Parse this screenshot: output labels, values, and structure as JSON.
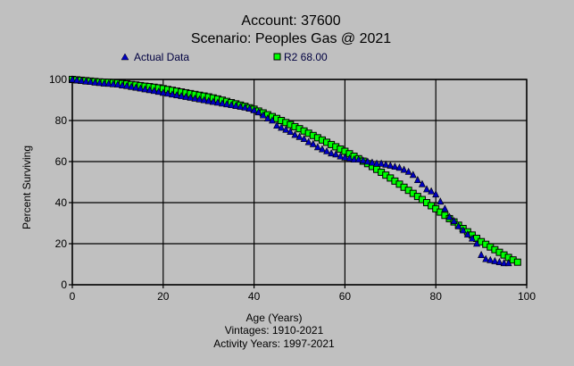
{
  "chart_data": {
    "type": "scatter",
    "title": "Account: 37600",
    "subtitle": "Scenario: Peoples Gas @ 2021",
    "xlabel": "Age (Years)",
    "ylabel": "Percent Surviving",
    "footnotes": [
      "Vintages: 1910-2021",
      "Activity Years: 1997-2021"
    ],
    "xlim": [
      0,
      100
    ],
    "ylim": [
      0,
      100
    ],
    "xticks": [
      "0",
      "20",
      "40",
      "60",
      "80",
      "100"
    ],
    "yticks": [
      "0",
      "20",
      "40",
      "60",
      "80",
      "100"
    ],
    "grid": true,
    "legend_placement": "top",
    "colors": {
      "background": "#c0c0c0",
      "actual": "#0000c0",
      "fit": "#00ff00"
    },
    "series": [
      {
        "name": "Actual Data",
        "marker": "triangle",
        "x_start": 0,
        "x_step": 1,
        "values": [
          100,
          99.6,
          99.3,
          99.0,
          98.8,
          98.5,
          98.3,
          98.0,
          97.9,
          97.7,
          97.5,
          97.1,
          96.8,
          96.4,
          96.0,
          95.6,
          95.2,
          94.8,
          94.4,
          94.0,
          93.5,
          93.1,
          92.7,
          92.3,
          91.9,
          91.5,
          91.1,
          90.7,
          90.3,
          89.9,
          89.5,
          89.1,
          88.7,
          88.3,
          87.9,
          87.5,
          87.1,
          86.7,
          86.3,
          85.8,
          85.0,
          84.0,
          82.5,
          81.0,
          80.0,
          77.5,
          76.5,
          75.5,
          74.5,
          73.0,
          72.0,
          71.0,
          69.5,
          68.5,
          67.0,
          66.0,
          65.0,
          64.0,
          63.5,
          62.5,
          62.0,
          61.5,
          61.0,
          61.0,
          60.5,
          60.0,
          59.5,
          59.0,
          59.0,
          58.5,
          58.0,
          57.5,
          57.0,
          56.0,
          55.0,
          53.5,
          51.0,
          49.0,
          46.5,
          45.5,
          44.0,
          40.5,
          37.0,
          33.0,
          31.0,
          28.5,
          26.5,
          24.5,
          22.5,
          20.0,
          14.5,
          12.5,
          12.0,
          11.5,
          11.0,
          10.5,
          10.5
        ]
      },
      {
        "name": "R2 68.00",
        "marker": "square",
        "x_start": 0,
        "x_step": 1,
        "values": [
          100,
          99.8,
          99.6,
          99.4,
          99.2,
          99.0,
          98.8,
          98.7,
          98.6,
          98.4,
          98.3,
          98.0,
          97.8,
          97.5,
          97.3,
          97.0,
          96.7,
          96.5,
          96.2,
          95.9,
          95.5,
          95.1,
          94.7,
          94.3,
          93.9,
          93.5,
          93.1,
          92.7,
          92.3,
          91.9,
          91.5,
          91.0,
          90.5,
          89.9,
          89.3,
          88.7,
          88.1,
          87.5,
          86.9,
          86.2,
          85.5,
          84.6,
          83.7,
          82.8,
          81.9,
          81.0,
          80.0,
          79.0,
          78.0,
          77.0,
          76.0,
          74.9,
          73.8,
          72.7,
          71.6,
          70.5,
          69.4,
          68.3,
          67.2,
          66.1,
          65.0,
          63.8,
          62.6,
          61.4,
          60.2,
          59.0,
          57.6,
          56.2,
          54.8,
          53.4,
          52.0,
          50.5,
          49.0,
          47.5,
          46.0,
          44.5,
          43.0,
          41.5,
          40.0,
          38.5,
          37.0,
          35.4,
          33.8,
          32.2,
          30.6,
          29.0,
          27.4,
          25.8,
          24.2,
          22.6,
          21.0,
          19.7,
          18.4,
          17.1,
          15.8,
          14.5,
          13.3,
          12.1,
          11.0
        ]
      }
    ]
  }
}
